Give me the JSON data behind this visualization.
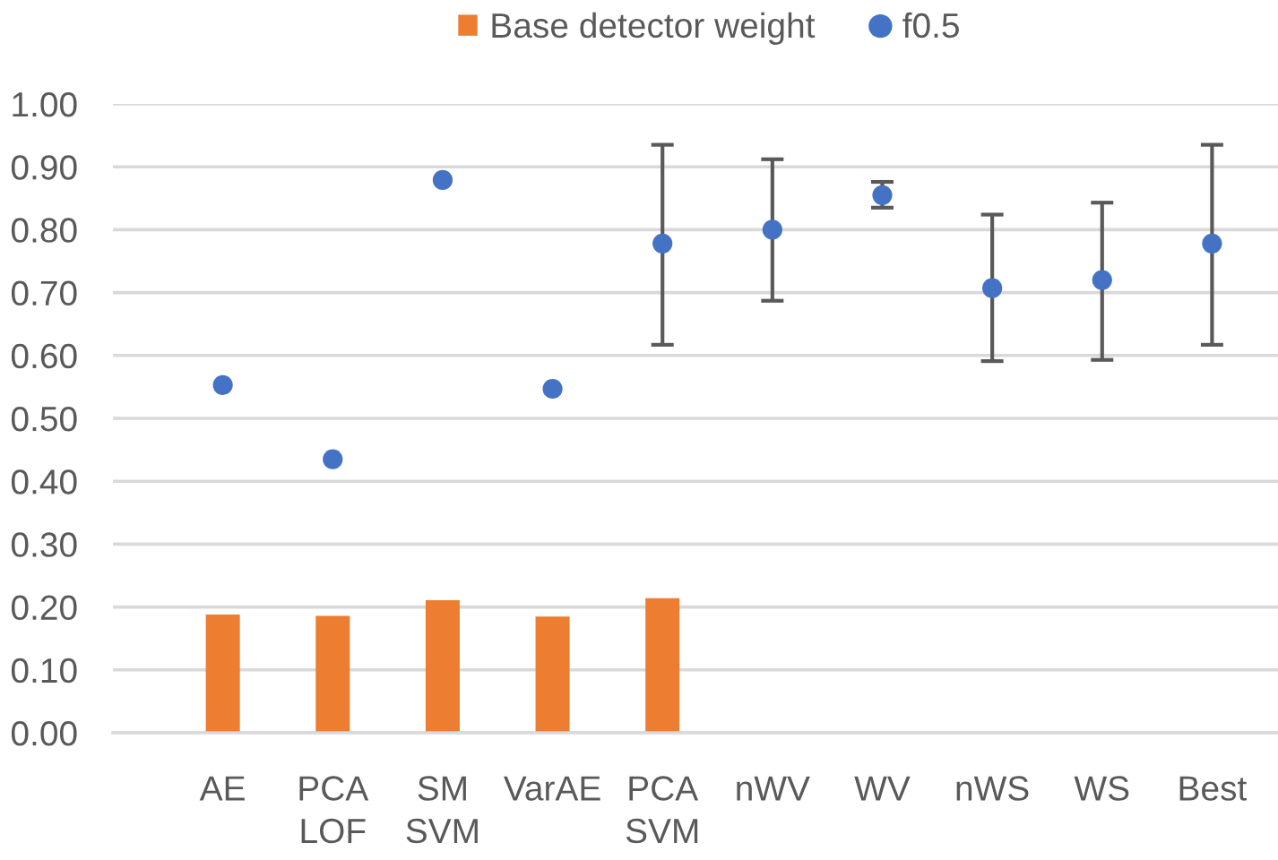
{
  "chart_data": {
    "type": "bar",
    "categories": [
      "AE",
      "PCA LOF",
      "SM SVM",
      "VarAE",
      "PCA SVM",
      "nWV",
      "WV",
      "nWS",
      "WS",
      "Best"
    ],
    "series": [
      {
        "name": "Base detector weight",
        "color": "#ed7d31",
        "values": [
          0.188,
          0.186,
          0.211,
          0.185,
          0.214,
          null,
          null,
          null,
          null,
          null
        ]
      },
      {
        "name": "f0.5",
        "type": "scatter",
        "color": "#4472c4",
        "values": [
          0.553,
          0.435,
          0.879,
          0.547,
          0.778,
          0.8,
          0.855,
          0.707,
          0.72,
          0.778
        ],
        "errors": [
          null,
          null,
          null,
          null,
          [
            0.617,
            0.935
          ],
          [
            0.687,
            0.912
          ],
          [
            0.835,
            0.876
          ],
          [
            0.591,
            0.824
          ],
          [
            0.593,
            0.843
          ],
          [
            0.617,
            0.935
          ]
        ]
      }
    ],
    "ylim": [
      0,
      1
    ],
    "yticks": [
      {
        "value": 0,
        "label": "0.00"
      },
      {
        "value": 0.1,
        "label": "0.10"
      },
      {
        "value": 0.2,
        "label": "0.20"
      },
      {
        "value": 0.3,
        "label": "0.30"
      },
      {
        "value": 0.4,
        "label": "0.40"
      },
      {
        "value": 0.5,
        "label": "0.50"
      },
      {
        "value": 0.6,
        "label": "0.60"
      },
      {
        "value": 0.7,
        "label": "0.70"
      },
      {
        "value": 0.8,
        "label": "0.80"
      },
      {
        "value": 0.9,
        "label": "0.90"
      },
      {
        "value": 1,
        "label": "1.00"
      }
    ],
    "grid": "y",
    "legend": "top",
    "marker": "circle"
  }
}
